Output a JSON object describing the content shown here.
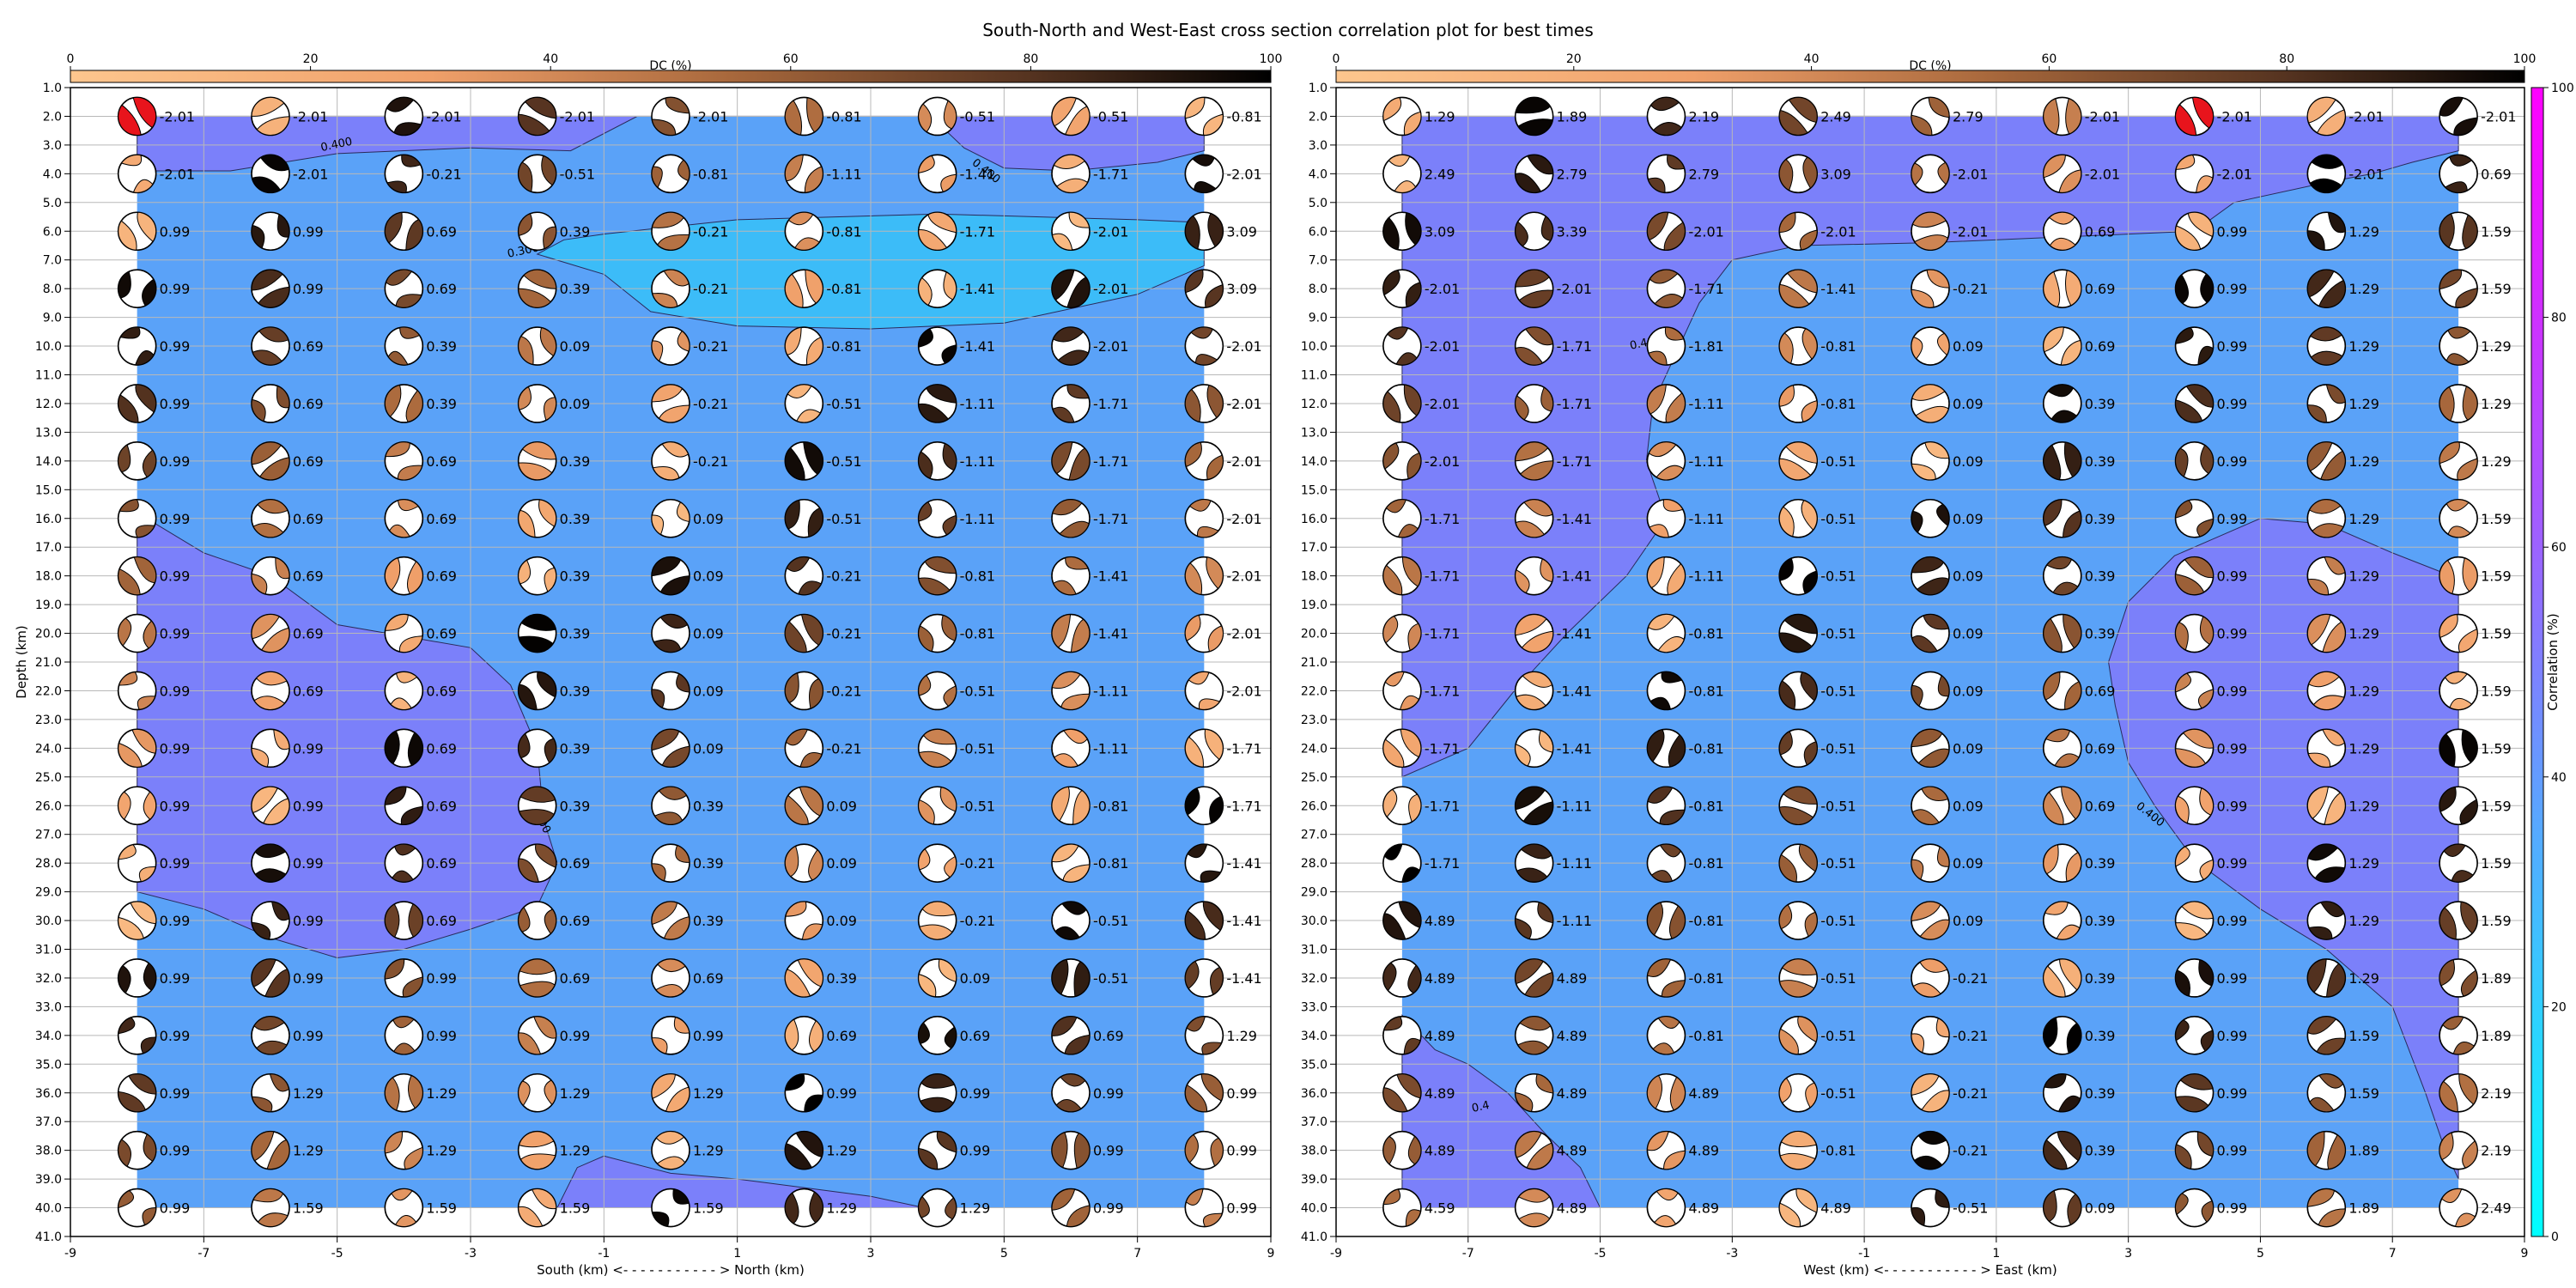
{
  "figure": {
    "title": "South-North and West-East cross section correlation plot for best times"
  },
  "chart_data": [
    {
      "type": "scatter",
      "panel": "south-north",
      "title": "",
      "xlabel": "South (km) <- - - - - - - - - - - > North (km)",
      "ylabel": "Depth (km)",
      "xlim": [
        -9,
        9
      ],
      "ylim": [
        41,
        1
      ],
      "y_inverted": true,
      "grid": true,
      "x_ticks": [
        -9,
        -7,
        -5,
        -3,
        -1,
        1,
        3,
        5,
        7,
        9
      ],
      "y_ticks": [
        1.0,
        2.0,
        3.0,
        4.0,
        5.0,
        6.0,
        7.0,
        8.0,
        9.0,
        10.0,
        11.0,
        12.0,
        13.0,
        14.0,
        15.0,
        16.0,
        17.0,
        18.0,
        19.0,
        20.0,
        21.0,
        22.0,
        23.0,
        24.0,
        25.0,
        26.0,
        27.0,
        28.0,
        29.0,
        30.0,
        31.0,
        32.0,
        33.0,
        34.0,
        35.0,
        36.0,
        37.0,
        38.0,
        39.0,
        40.0,
        41.0
      ],
      "x": [
        -8,
        -6,
        -4,
        -2,
        0,
        2,
        4,
        6,
        8
      ],
      "depths": [
        2,
        4,
        6,
        8,
        10,
        12,
        14,
        16,
        18,
        20,
        22,
        24,
        26,
        28,
        30,
        32,
        34,
        36,
        38,
        40
      ],
      "time_labels": [
        [
          "-2.01",
          "-2.01",
          "-2.01",
          "-2.01",
          "-2.01",
          "-0.81",
          "-0.51",
          "-0.51",
          "-0.81"
        ],
        [
          "-2.01",
          "-2.01",
          "-0.21",
          "-0.51",
          "-0.81",
          "-1.11",
          "-1.41",
          "-1.71",
          "-2.01"
        ],
        [
          "0.99",
          "0.99",
          "0.69",
          "0.39",
          "-0.21",
          "-0.81",
          "-1.71",
          "-2.01",
          "3.09"
        ],
        [
          "0.99",
          "0.99",
          "0.69",
          "0.39",
          "-0.21",
          "-0.81",
          "-1.41",
          "-2.01",
          "3.09"
        ],
        [
          "0.99",
          "0.69",
          "0.39",
          "0.09",
          "-0.21",
          "-0.81",
          "-1.41",
          "-2.01",
          "-2.01"
        ],
        [
          "0.99",
          "0.69",
          "0.39",
          "0.09",
          "-0.21",
          "-0.51",
          "-1.11",
          "-1.71",
          "-2.01"
        ],
        [
          "0.99",
          "0.69",
          "0.69",
          "0.39",
          "-0.21",
          "-0.51",
          "-1.11",
          "-1.71",
          "-2.01"
        ],
        [
          "0.99",
          "0.69",
          "0.69",
          "0.39",
          "0.09",
          "-0.51",
          "-1.11",
          "-1.71",
          "-2.01"
        ],
        [
          "0.99",
          "0.69",
          "0.69",
          "0.39",
          "0.09",
          "-0.21",
          "-0.81",
          "-1.41",
          "-2.01"
        ],
        [
          "0.99",
          "0.69",
          "0.69",
          "0.39",
          "0.09",
          "-0.21",
          "-0.81",
          "-1.41",
          "-2.01"
        ],
        [
          "0.99",
          "0.69",
          "0.69",
          "0.39",
          "0.09",
          "-0.21",
          "-0.51",
          "-1.11",
          "-2.01"
        ],
        [
          "0.99",
          "0.99",
          "0.69",
          "0.39",
          "0.09",
          "-0.21",
          "-0.51",
          "-1.11",
          "-1.71"
        ],
        [
          "0.99",
          "0.99",
          "0.69",
          "0.39",
          "0.39",
          "0.09",
          "-0.51",
          "-0.81",
          "-1.71"
        ],
        [
          "0.99",
          "0.99",
          "0.69",
          "0.69",
          "0.39",
          "0.09",
          "-0.21",
          "-0.81",
          "-1.41"
        ],
        [
          "0.99",
          "0.99",
          "0.69",
          "0.69",
          "0.39",
          "0.09",
          "-0.21",
          "-0.51",
          "-1.41"
        ],
        [
          "0.99",
          "0.99",
          "0.99",
          "0.69",
          "0.69",
          "0.39",
          "0.09",
          "-0.51",
          "-1.41"
        ],
        [
          "0.99",
          "0.99",
          "0.99",
          "0.99",
          "0.99",
          "0.69",
          "0.69",
          "0.69",
          "1.29"
        ],
        [
          "0.99",
          "1.29",
          "1.29",
          "1.29",
          "1.29",
          "0.99",
          "0.99",
          "0.99",
          "0.99"
        ],
        [
          "0.99",
          "1.29",
          "1.29",
          "1.29",
          "1.29",
          "1.29",
          "0.99",
          "0.99",
          "0.99"
        ],
        [
          "0.99",
          "1.59",
          "1.59",
          "1.59",
          "1.59",
          "1.29",
          "1.29",
          "0.99",
          "0.99"
        ]
      ],
      "contour_labels": [
        {
          "text": "0.400",
          "x": -5,
          "y": 3.1
        },
        {
          "text": "0.400",
          "x": 4.7,
          "y": 4.0
        },
        {
          "text": "0.300",
          "x": -2.2,
          "y": 6.8
        },
        {
          "text": "0.400",
          "x": -2.0,
          "y": 26.5
        }
      ]
    },
    {
      "type": "scatter",
      "panel": "west-east",
      "title": "",
      "xlabel": "West (km) <- - - - - - - - - - - > East (km)",
      "ylabel": "",
      "xlim": [
        -9,
        9
      ],
      "ylim": [
        41,
        1
      ],
      "y_inverted": true,
      "grid": true,
      "x_ticks": [
        -9,
        -7,
        -5,
        -3,
        -1,
        1,
        3,
        5,
        7,
        9
      ],
      "y_ticks": [
        1.0,
        2.0,
        3.0,
        4.0,
        5.0,
        6.0,
        7.0,
        8.0,
        9.0,
        10.0,
        11.0,
        12.0,
        13.0,
        14.0,
        15.0,
        16.0,
        17.0,
        18.0,
        19.0,
        20.0,
        21.0,
        22.0,
        23.0,
        24.0,
        25.0,
        26.0,
        27.0,
        28.0,
        29.0,
        30.0,
        31.0,
        32.0,
        33.0,
        34.0,
        35.0,
        36.0,
        37.0,
        38.0,
        39.0,
        40.0,
        41.0
      ],
      "x": [
        -8,
        -6,
        -4,
        -2,
        0,
        2,
        4,
        6,
        8
      ],
      "depths": [
        2,
        4,
        6,
        8,
        10,
        12,
        14,
        16,
        18,
        20,
        22,
        24,
        26,
        28,
        30,
        32,
        34,
        36,
        38,
        40
      ],
      "time_labels": [
        [
          "1.29",
          "1.89",
          "2.19",
          "2.49",
          "2.79",
          "-2.01",
          "-2.01",
          "-2.01",
          "-2.01"
        ],
        [
          "2.49",
          "2.79",
          "2.79",
          "3.09",
          "-2.01",
          "-2.01",
          "-2.01",
          "-2.01",
          "0.69"
        ],
        [
          "3.09",
          "3.39",
          "-2.01",
          "-2.01",
          "-2.01",
          "0.69",
          "0.99",
          "1.29",
          "1.59"
        ],
        [
          "-2.01",
          "-2.01",
          "-1.71",
          "-1.41",
          "-0.21",
          "0.69",
          "0.99",
          "1.29",
          "1.59"
        ],
        [
          "-2.01",
          "-1.71",
          "-1.81",
          "-0.81",
          "0.09",
          "0.69",
          "0.99",
          "1.29",
          "1.29"
        ],
        [
          "-2.01",
          "-1.71",
          "-1.11",
          "-0.81",
          "0.09",
          "0.39",
          "0.99",
          "1.29",
          "1.29"
        ],
        [
          "-2.01",
          "-1.71",
          "-1.11",
          "-0.51",
          "0.09",
          "0.39",
          "0.99",
          "1.29",
          "1.29"
        ],
        [
          "-1.71",
          "-1.41",
          "-1.11",
          "-0.51",
          "0.09",
          "0.39",
          "0.99",
          "1.29",
          "1.59"
        ],
        [
          "-1.71",
          "-1.41",
          "-1.11",
          "-0.51",
          "0.09",
          "0.39",
          "0.99",
          "1.29",
          "1.59"
        ],
        [
          "-1.71",
          "-1.41",
          "-0.81",
          "-0.51",
          "0.09",
          "0.39",
          "0.99",
          "1.29",
          "1.59"
        ],
        [
          "-1.71",
          "-1.41",
          "-0.81",
          "-0.51",
          "0.09",
          "0.69",
          "0.99",
          "1.29",
          "1.59"
        ],
        [
          "-1.71",
          "-1.41",
          "-0.81",
          "-0.51",
          "0.09",
          "0.69",
          "0.99",
          "1.29",
          "1.59"
        ],
        [
          "-1.71",
          "-1.11",
          "-0.81",
          "-0.51",
          "0.09",
          "0.69",
          "0.99",
          "1.29",
          "1.59"
        ],
        [
          "-1.71",
          "-1.11",
          "-0.81",
          "-0.51",
          "0.09",
          "0.39",
          "0.99",
          "1.29",
          "1.59"
        ],
        [
          "4.89",
          "-1.11",
          "-0.81",
          "-0.51",
          "0.09",
          "0.39",
          "0.99",
          "1.29",
          "1.59"
        ],
        [
          "4.89",
          "4.89",
          "-0.81",
          "-0.51",
          "-0.21",
          "0.39",
          "0.99",
          "1.29",
          "1.89"
        ],
        [
          "4.89",
          "4.89",
          "-0.81",
          "-0.51",
          "-0.21",
          "0.39",
          "0.99",
          "1.59",
          "1.89"
        ],
        [
          "4.89",
          "4.89",
          "4.89",
          "-0.51",
          "-0.21",
          "0.39",
          "0.99",
          "1.59",
          "2.19"
        ],
        [
          "4.89",
          "4.89",
          "4.89",
          "-0.81",
          "-0.21",
          "0.39",
          "0.99",
          "1.89",
          "2.19"
        ],
        [
          "4.59",
          "4.89",
          "4.89",
          "4.89",
          "-0.51",
          "0.09",
          "0.99",
          "1.89",
          "2.49"
        ]
      ],
      "contour_labels": [
        {
          "text": "0.400",
          "x": -4.3,
          "y": 10.0
        },
        {
          "text": "0.400",
          "x": 3.3,
          "y": 26.4
        },
        {
          "text": "0.4",
          "x": -6.8,
          "y": 36.6
        }
      ]
    }
  ],
  "colorbar_dc": {
    "label": "DC (%)",
    "range": [
      0,
      100
    ],
    "ticks": [
      0,
      20,
      40,
      60,
      80,
      100
    ]
  },
  "colorbar_corr": {
    "label": "Correlation (%)",
    "range": [
      0,
      100
    ],
    "ticks": [
      0,
      20,
      40,
      60,
      80,
      100
    ]
  },
  "colors": {
    "corr_high": "#7b80fa",
    "corr_mid": "#5aa2f8",
    "corr_low": "#3cbcf8",
    "beachball_red": "#e8141c",
    "dc_low": "#fdb57e",
    "dc_high": "#1a0f08"
  }
}
